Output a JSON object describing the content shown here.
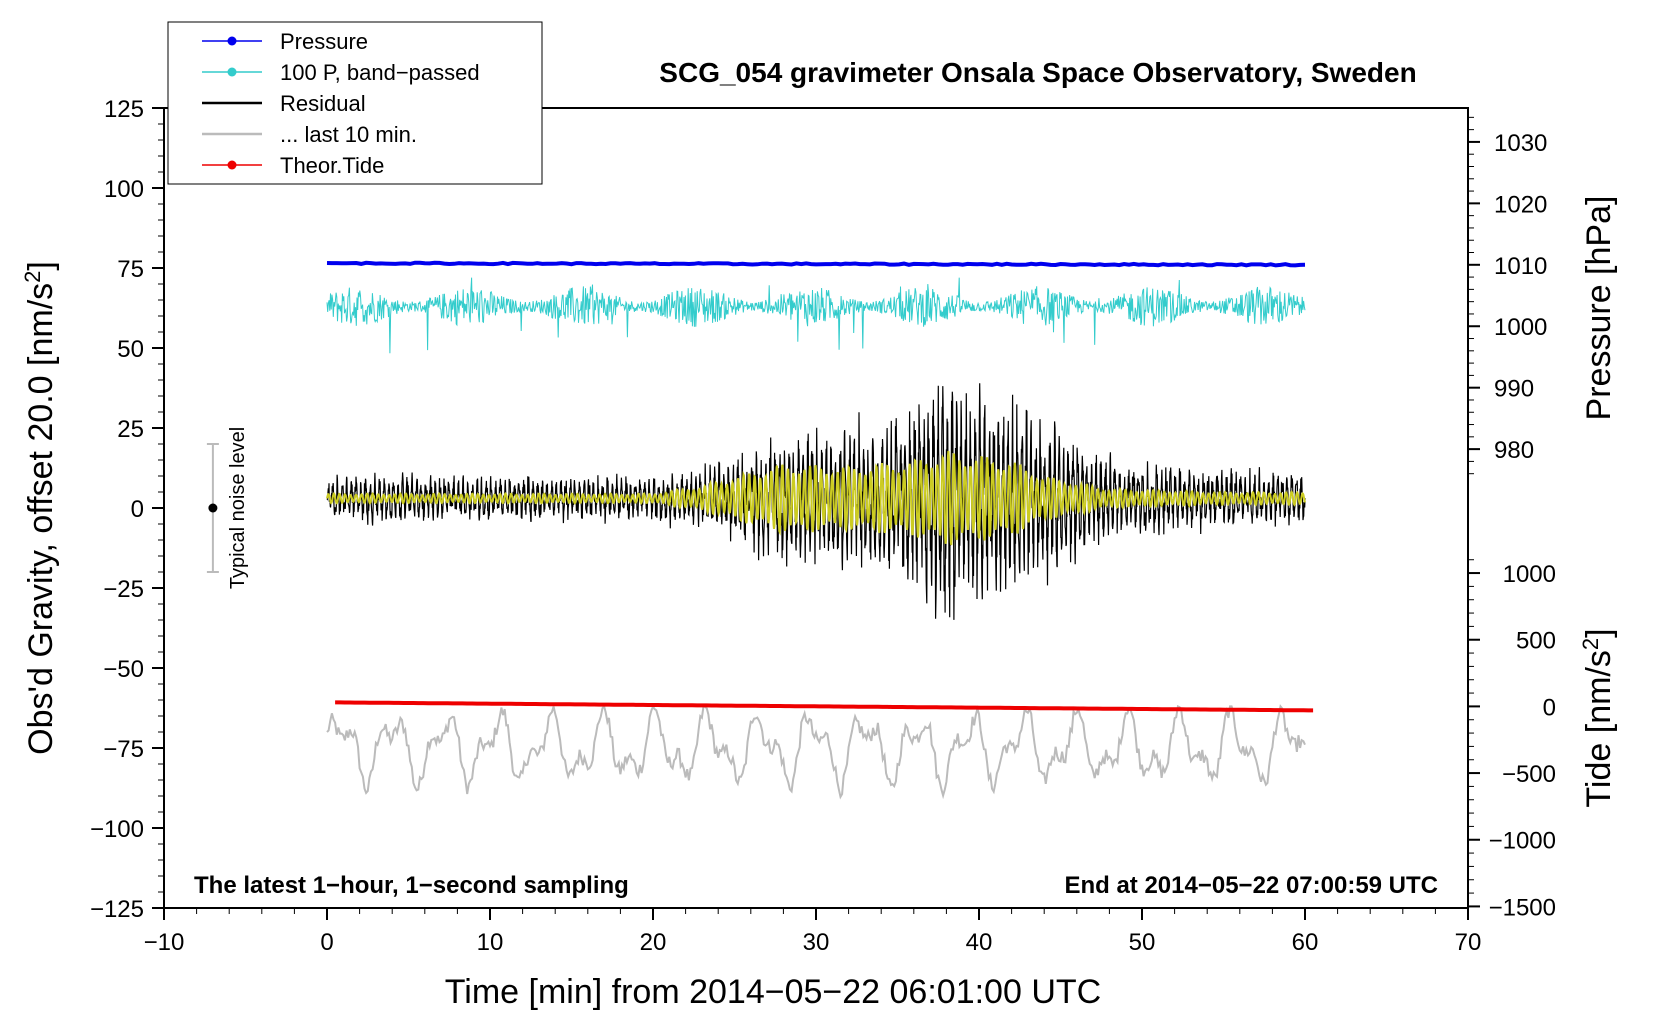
{
  "chart_data": {
    "type": "line",
    "title": "SCG_054 gravimeter Onsala Space Observatory, Sweden",
    "xlabel": "Time [min] from 2014−05−22 06:01:00 UTC",
    "ylabel_left_main": "Obs'd Gravity, offset 20.0 [nm/s",
    "ylabel_left_sup": "2",
    "ylabel_left_tail": "]",
    "ylabel_right_pressure": "Pressure [hPa]",
    "ylabel_right_tide_main": "Tide [nm/s",
    "ylabel_right_tide_sup": "2",
    "ylabel_right_tide_tail": "]",
    "xlim": [
      -10,
      70
    ],
    "ylim": [
      -125,
      125
    ],
    "x_ticks": [
      -10,
      0,
      10,
      20,
      30,
      40,
      50,
      60,
      70
    ],
    "x_tick_labels": [
      "−10",
      "0",
      "10",
      "20",
      "30",
      "40",
      "50",
      "60",
      "70"
    ],
    "y_ticks": [
      -125,
      -100,
      -75,
      -50,
      -25,
      0,
      25,
      50,
      75,
      100,
      125
    ],
    "y_tick_labels": [
      "−125",
      "−100",
      "−75",
      "−50",
      "−25",
      "0",
      "25",
      "50",
      "75",
      "100",
      "125"
    ],
    "pressure_axis": {
      "ticks": [
        980,
        990,
        1000,
        1010,
        1020,
        1030
      ],
      "tick_labels": [
        "980",
        "990",
        "1000",
        "1010",
        "1020",
        "1030"
      ],
      "gravity_at_1010": 76,
      "gravity_per_hpa": 1.92
    },
    "tide_axis": {
      "ticks": [
        -1500,
        -1000,
        -500,
        0,
        500,
        1000
      ],
      "tick_labels": [
        "−1500",
        "−1000",
        "−500",
        "0",
        "500",
        "1000"
      ],
      "gravity_at_0": -62,
      "gravity_per_unit": 0.04167
    },
    "noise_bar": {
      "x": -7,
      "center": 0,
      "half_range": 20,
      "label": "Typical noise level"
    },
    "legend": [
      {
        "label": "Pressure",
        "color": "#0000ee",
        "marker": true
      },
      {
        "label": "100 P, band−passed",
        "color": "#33cccc",
        "marker": true
      },
      {
        "label": "Residual",
        "color": "#000000",
        "marker": false
      },
      {
        "label": "... last 10 min.",
        "color": "#bbbbbb",
        "marker": false
      },
      {
        "label": "Theor.Tide",
        "color": "#ee0000",
        "marker": true
      }
    ],
    "annotations": {
      "bottom_left": "The latest 1−hour, 1−second sampling",
      "bottom_right": "End at 2014−05−22 07:00:59 UTC"
    },
    "series": [
      {
        "name": "Pressure",
        "color": "#0000ee",
        "x_range": [
          0,
          60
        ],
        "level_hpa": 1010,
        "gravity_start": 76.5,
        "gravity_end": 76.0
      },
      {
        "name": "100 P, band−passed",
        "color": "#33cccc",
        "x_range": [
          0,
          60
        ],
        "baseline": 63,
        "min": 45,
        "max": 72
      },
      {
        "name": "Residual",
        "color": "#000000",
        "x_range": [
          0,
          60
        ],
        "baseline": 3,
        "min": -42,
        "max": 41,
        "envelope": [
          [
            0,
            8
          ],
          [
            10,
            7
          ],
          [
            20,
            7
          ],
          [
            24,
            10
          ],
          [
            28,
            20
          ],
          [
            32,
            22
          ],
          [
            36,
            28
          ],
          [
            38,
            40
          ],
          [
            40,
            30
          ],
          [
            42,
            30
          ],
          [
            44,
            25
          ],
          [
            48,
            12
          ],
          [
            55,
            9
          ],
          [
            60,
            8
          ]
        ]
      },
      {
        "name": "Residual (filtered)",
        "color": "#cccc22",
        "x_range": [
          0,
          60
        ],
        "baseline": 3,
        "envelope": [
          [
            0,
            1.5
          ],
          [
            20,
            1.5
          ],
          [
            23,
            4
          ],
          [
            28,
            11
          ],
          [
            32,
            10
          ],
          [
            36,
            12
          ],
          [
            38,
            15
          ],
          [
            42,
            12
          ],
          [
            44,
            7
          ],
          [
            48,
            3
          ],
          [
            55,
            2
          ],
          [
            60,
            2
          ]
        ]
      },
      {
        "name": "... last 10 min.",
        "color": "#bbbbbb",
        "x_range": [
          0,
          60
        ],
        "baseline": -75,
        "min": -92,
        "max": -62
      },
      {
        "name": "Theor.Tide",
        "color": "#ee0000",
        "x_range": [
          0.5,
          60.5
        ],
        "tide_start": 30,
        "tide_end": -30
      }
    ]
  }
}
